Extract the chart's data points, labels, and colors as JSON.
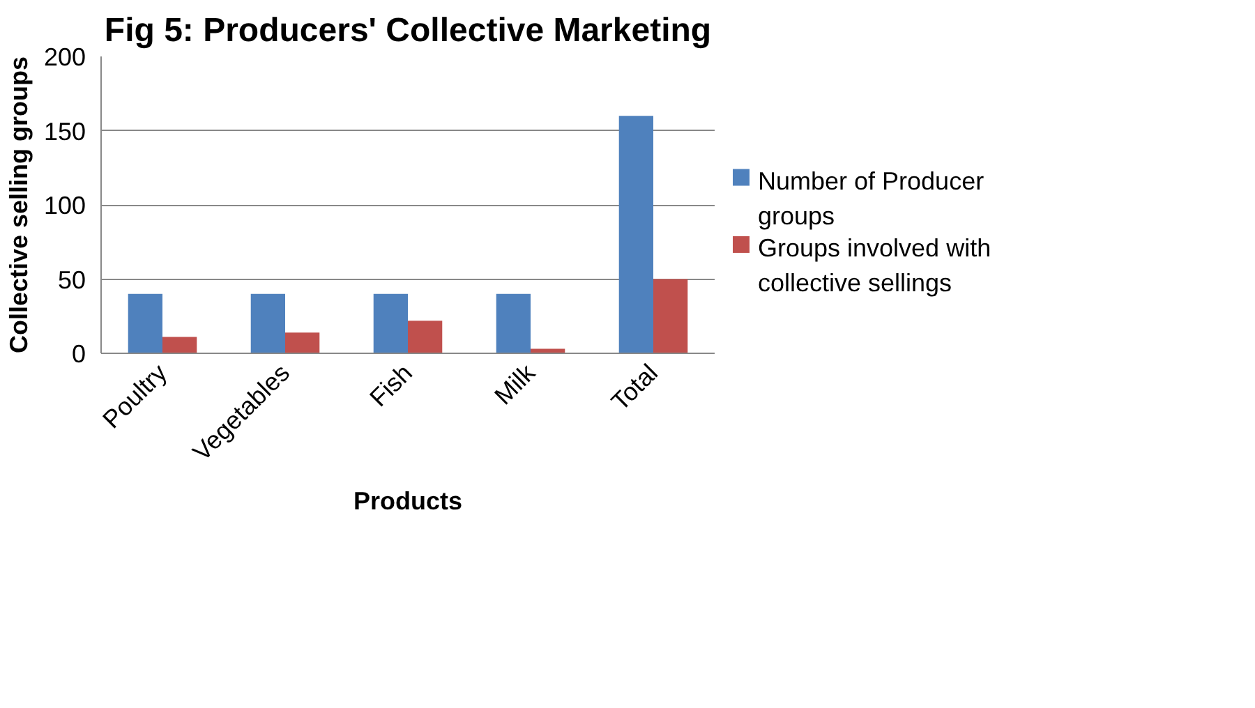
{
  "chart_data": {
    "type": "bar",
    "title": "Fig 5: Producers' Collective Marketing",
    "xlabel": "Products",
    "ylabel": "Collective selling groups",
    "categories": [
      "Poultry",
      "Vegetables",
      "Fish",
      "Milk",
      "Total"
    ],
    "series": [
      {
        "name": "Number of Producer groups",
        "color": "#4f81bd",
        "values": [
          40,
          40,
          40,
          40,
          160
        ]
      },
      {
        "name": "Groups involved with collective sellings",
        "color": "#c0504d",
        "values": [
          11,
          14,
          22,
          3,
          50
        ]
      }
    ],
    "ylim": [
      0,
      200
    ],
    "yticks": [
      0,
      50,
      100,
      150,
      200
    ],
    "grid": "y",
    "legend": "right"
  }
}
